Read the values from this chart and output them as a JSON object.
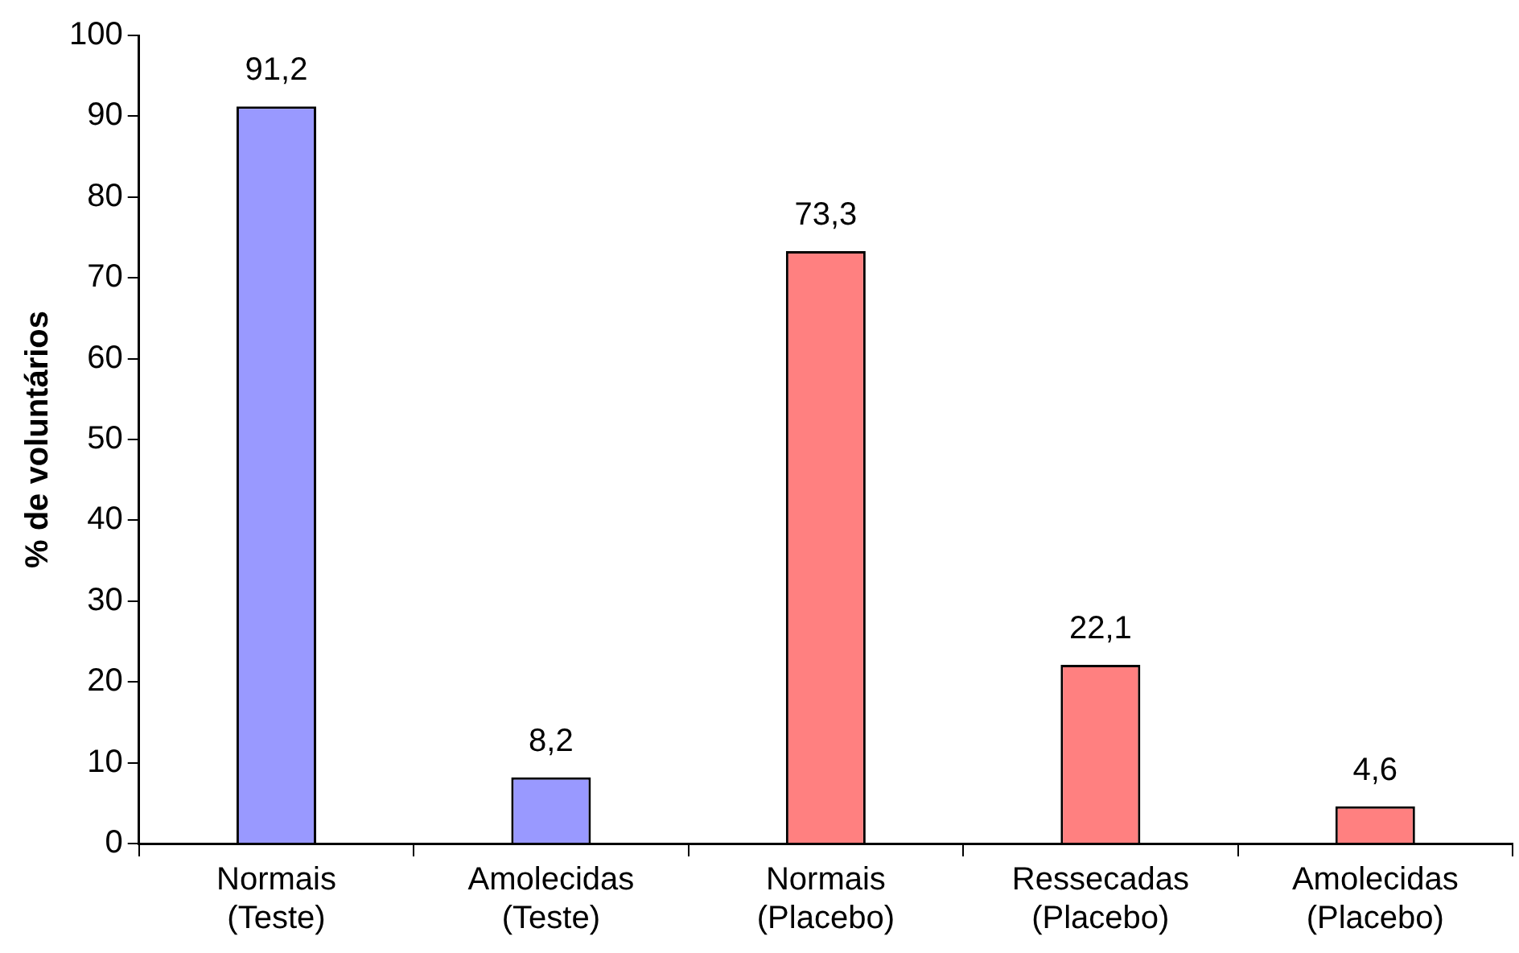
{
  "chart_data": {
    "type": "bar",
    "ylabel": "% de voluntários",
    "categories": [
      "Normais (Teste)",
      "Amolecidas (Teste)",
      "Normais (Placebo)",
      "Ressecadas (Placebo)",
      "Amolecidas (Placebo)"
    ],
    "values": [
      91.2,
      8.2,
      73.3,
      22.1,
      4.6
    ],
    "colors": [
      "#9999ff",
      "#9999ff",
      "#ff8080",
      "#ff8080",
      "#ff8080"
    ],
    "value_labels": [
      "91,2",
      "8,2",
      "73,3",
      "22,1",
      "4,6"
    ],
    "ylim": [
      0,
      100
    ],
    "yticks": [
      0,
      10,
      20,
      30,
      40,
      50,
      60,
      70,
      80,
      90,
      100
    ],
    "grid": false,
    "legend": false
  }
}
